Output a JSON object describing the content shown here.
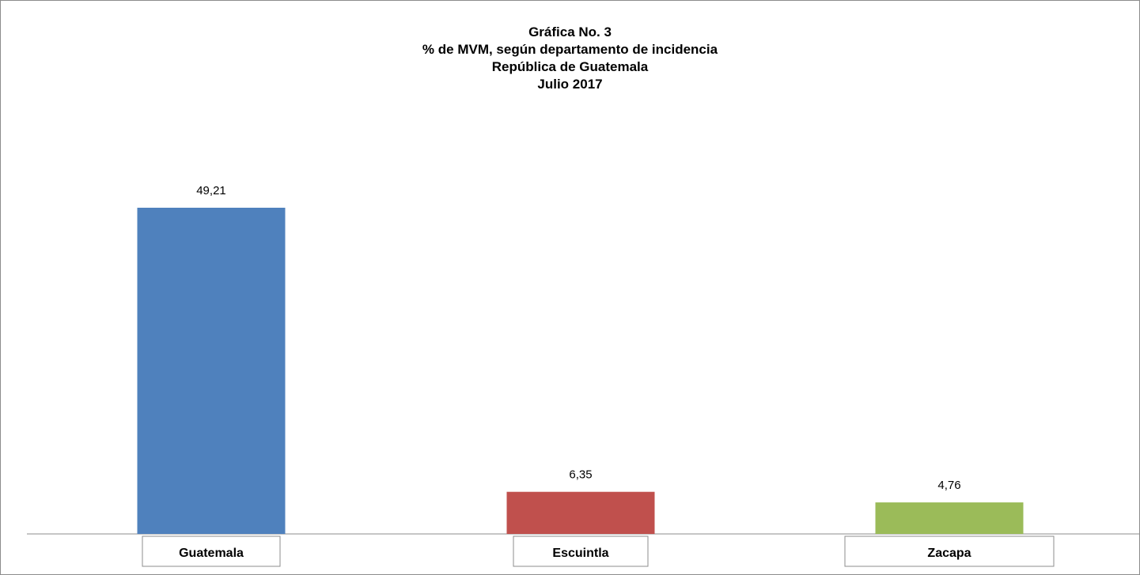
{
  "chart_data": {
    "type": "bar",
    "title_lines": [
      "Gráfica No. 3",
      "% de MVM, según departamento de incidencia",
      "República de Guatemala",
      "Julio  2017"
    ],
    "categories": [
      "Guatemala",
      "Escuintla",
      "Zacapa"
    ],
    "values": [
      49.21,
      6.35,
      4.76
    ],
    "value_labels": [
      "49,21",
      "6,35",
      "4,76"
    ],
    "colors": [
      "#4f81bd",
      "#c0504d",
      "#9bbb59"
    ],
    "ylim": [
      0,
      60
    ],
    "xlabel": "",
    "ylabel": "",
    "grid": false,
    "legend": "none"
  }
}
